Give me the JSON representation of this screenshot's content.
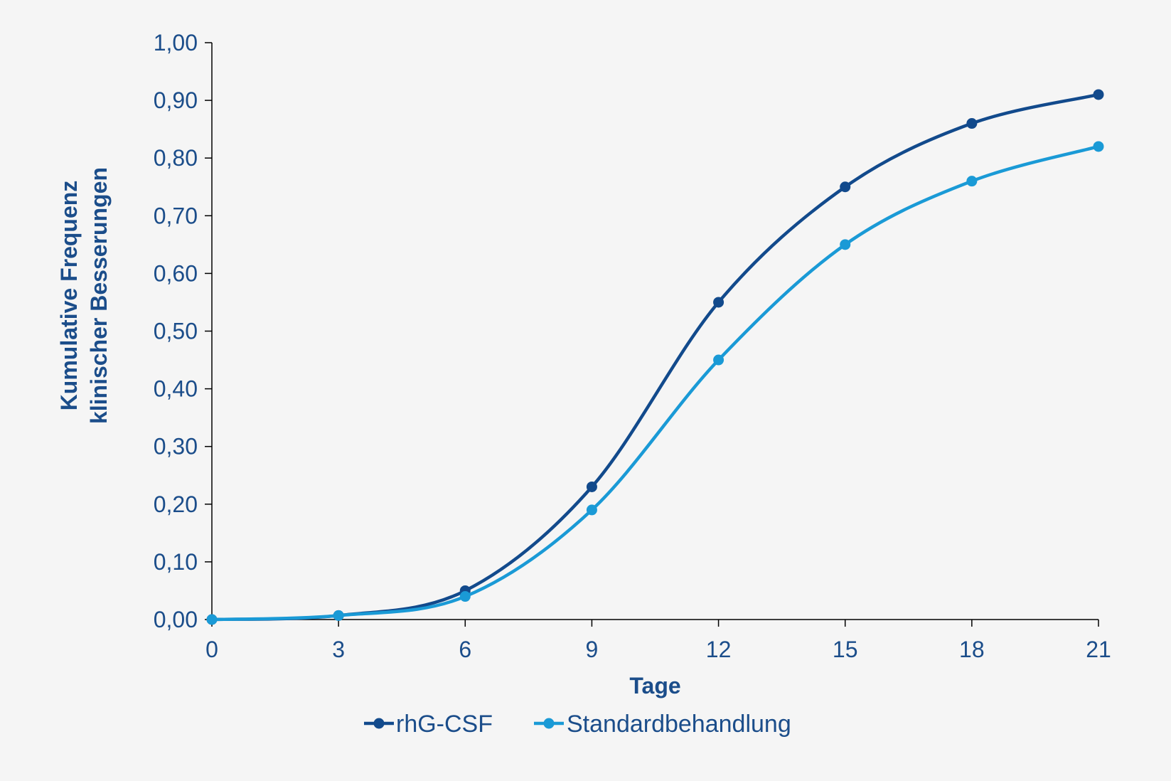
{
  "chart_data": {
    "type": "line",
    "x": [
      0,
      3,
      6,
      9,
      12,
      15,
      18,
      21
    ],
    "series": [
      {
        "name": "rhG-CSF",
        "values": [
          0.0,
          0.007,
          0.05,
          0.23,
          0.55,
          0.75,
          0.86,
          0.91
        ],
        "color": "#124a8c"
      },
      {
        "name": "Standardbehandlung",
        "values": [
          0.0,
          0.007,
          0.04,
          0.19,
          0.45,
          0.65,
          0.76,
          0.82
        ],
        "color": "#1a9ad6"
      }
    ],
    "xlabel": "Tage",
    "ylabel_line1": "Kumulative Frequenz",
    "ylabel_line2": "klinischer Besserungen",
    "xlim": [
      0,
      21
    ],
    "ylim": [
      0,
      1
    ],
    "x_ticks": [
      "0",
      "3",
      "6",
      "9",
      "12",
      "15",
      "18",
      "21"
    ],
    "y_ticks": [
      "0,00",
      "0,10",
      "0,20",
      "0,30",
      "0,40",
      "0,50",
      "0,60",
      "0,70",
      "0,80",
      "0,90",
      "1,00"
    ],
    "grid": false,
    "legend_position": "bottom-center",
    "smooth": true
  },
  "colors": {
    "axis": "#000000",
    "text": "#1b4d8a",
    "background": "#f5f5f5"
  }
}
